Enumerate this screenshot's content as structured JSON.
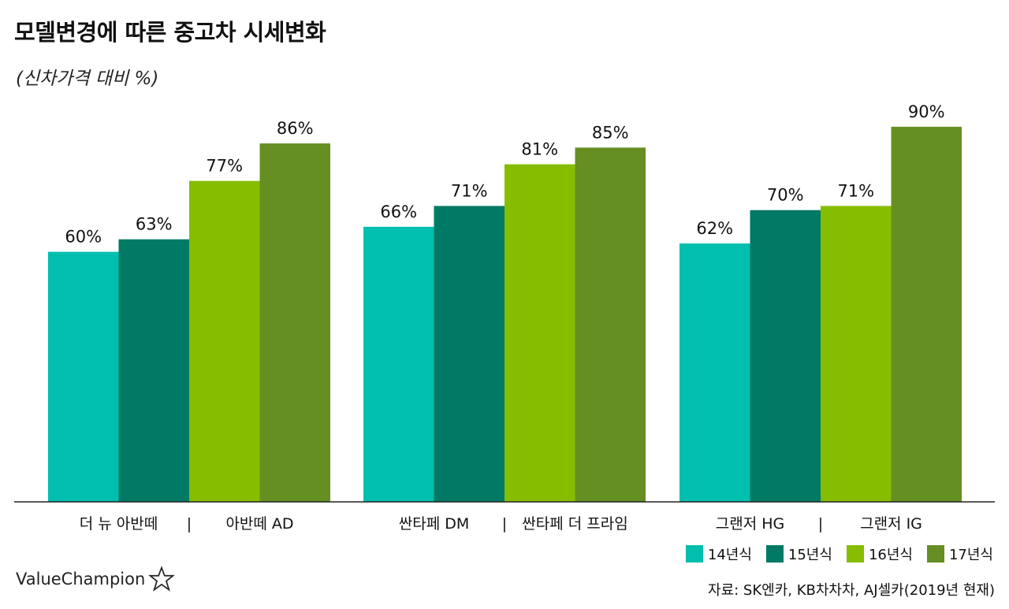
{
  "header": {
    "title": "모델변경에 따른 중고차 시세변화",
    "subtitle": "(신차가격 대비 %)"
  },
  "footer": {
    "brand": "ValueChampion",
    "source": "자료: SK엔카, KB차차차, AJ셀카(2019년 현재)"
  },
  "colors": [
    "#00bfae",
    "#007a65",
    "#86bd00",
    "#658f22"
  ],
  "chart_data": {
    "type": "bar",
    "title": "모델변경에 따른 중고차 시세변화",
    "subtitle": "(신차가격 대비 %)",
    "ylabel": "",
    "xlabel": "",
    "ylim": [
      0,
      100
    ],
    "grid": false,
    "legend_position": "bottom-right",
    "value_suffix": "%",
    "groups": [
      {
        "left": "더 뉴 아반떼",
        "sep": "|",
        "right": "아반떼 AD",
        "values": [
          60,
          63,
          77,
          86
        ]
      },
      {
        "left": "싼타페 DM",
        "sep": "|",
        "right": "싼타페 더 프라임",
        "values": [
          66,
          71,
          81,
          85
        ]
      },
      {
        "left": "그랜저 HG",
        "sep": "|",
        "right": "그랜저 IG",
        "values": [
          62,
          70,
          71,
          90
        ]
      }
    ],
    "series": [
      {
        "name": "14년식",
        "color": "#00bfae"
      },
      {
        "name": "15년식",
        "color": "#007a65"
      },
      {
        "name": "16년식",
        "color": "#86bd00"
      },
      {
        "name": "17년식",
        "color": "#658f22"
      }
    ]
  }
}
